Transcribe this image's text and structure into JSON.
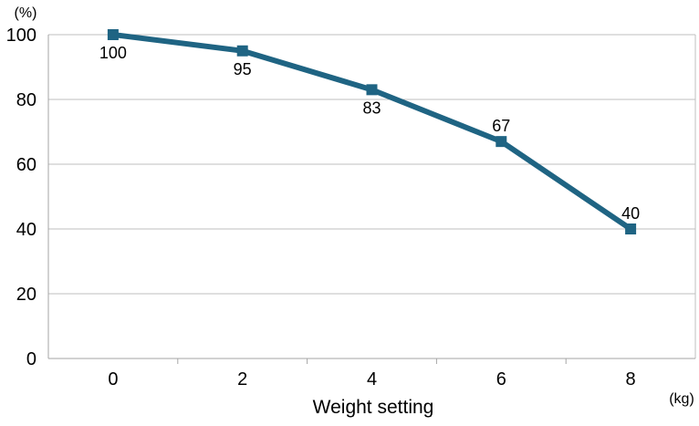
{
  "chart_data": {
    "type": "line",
    "title": "",
    "xlabel": "Weight setting",
    "ylabel": "",
    "x_unit": "(kg)",
    "y_unit": "(%)",
    "x": [
      0,
      2,
      4,
      6,
      8
    ],
    "series": [
      {
        "values": [
          100,
          95,
          83,
          67,
          40
        ],
        "data_labels": [
          "100",
          "95",
          "83",
          "67",
          "40"
        ]
      }
    ],
    "xlim": [
      -1,
      9
    ],
    "ylim": [
      0,
      100
    ],
    "x_ticks": [
      0,
      2,
      4,
      6,
      8
    ],
    "x_tick_labels": [
      "0",
      "2",
      "4",
      "6",
      "8"
    ],
    "y_ticks": [
      0,
      20,
      40,
      60,
      80,
      100
    ],
    "y_tick_labels": [
      "0",
      "20",
      "40",
      "60",
      "80",
      "100"
    ],
    "grid": "horizontal",
    "legend": "none",
    "colors": {
      "series": "#1f6483",
      "gridline": "#bfbfbf",
      "axis": "#a6a6a6"
    }
  }
}
